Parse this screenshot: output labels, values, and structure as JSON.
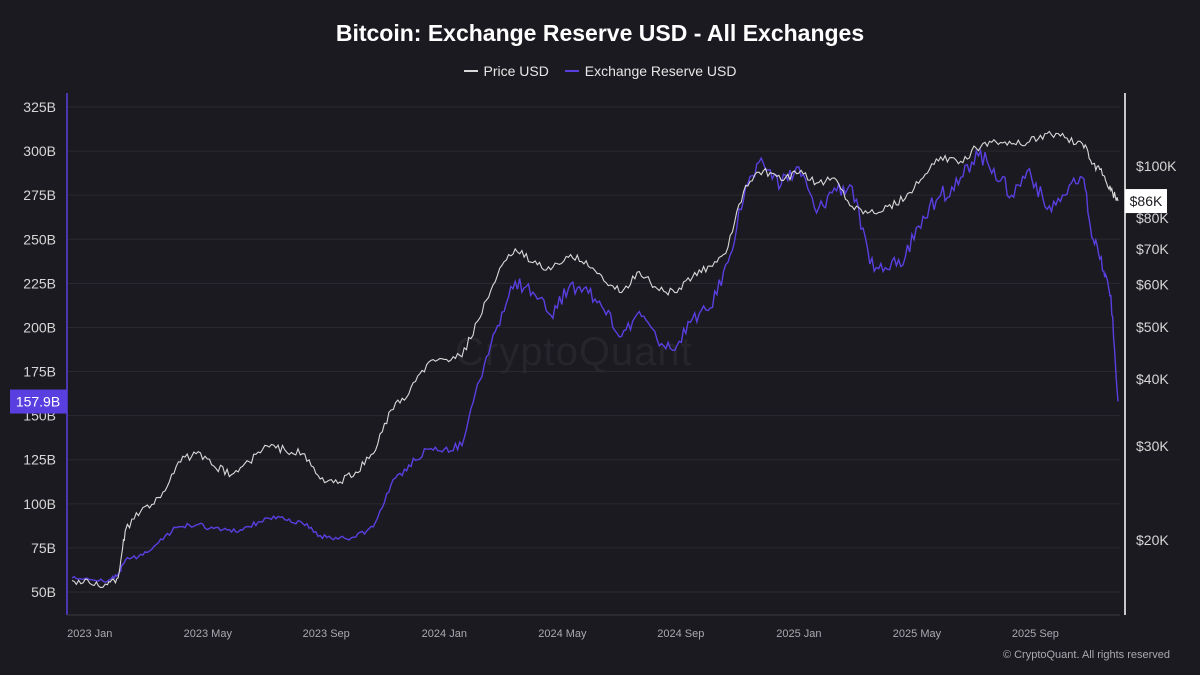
{
  "title": "Bitcoin: Exchange Reserve USD - All Exchanges",
  "copyright": "© CryptoQuant. All rights reserved",
  "watermark": "CryptoQuant",
  "legend": [
    {
      "label": "Price USD",
      "color": "#d9d9d9"
    },
    {
      "label": "Exchange Reserve USD",
      "color": "#5a3fe0"
    }
  ],
  "chart_data": {
    "type": "line",
    "title": "Bitcoin: Exchange Reserve USD - All Exchanges",
    "x_ticks": [
      "2023 Jan",
      "2023 May",
      "2023 Sep",
      "2024 Jan",
      "2024 May",
      "2024 Sep",
      "2025 Jan",
      "2025 May",
      "2025 Sep"
    ],
    "x_range": [
      "2022-12",
      "2025-11"
    ],
    "y_left": {
      "label": "Exchange Reserve USD",
      "ticks": [
        "50B",
        "75B",
        "100B",
        "125B",
        "150B",
        "175B",
        "200B",
        "225B",
        "250B",
        "275B",
        "300B",
        "325B"
      ],
      "range": [
        50,
        325
      ],
      "unit": "B"
    },
    "y_right": {
      "label": "Price USD",
      "scale": "log",
      "ticks": [
        "$20K",
        "$30K",
        "$40K",
        "$50K",
        "$60K",
        "$70K",
        "$80K",
        "$100K"
      ],
      "tick_values": [
        20000,
        30000,
        40000,
        50000,
        60000,
        70000,
        80000,
        100000
      ]
    },
    "last_value_labels": {
      "reserve": "157.9B",
      "price": "$86K"
    },
    "series": [
      {
        "name": "Exchange Reserve USD",
        "axis": "left",
        "color": "#5a3fe0",
        "x": [
          2022.95,
          2023.0,
          2023.05,
          2023.08,
          2023.1,
          2023.15,
          2023.2,
          2023.25,
          2023.3,
          2023.35,
          2023.4,
          2023.45,
          2023.5,
          2023.55,
          2023.6,
          2023.65,
          2023.7,
          2023.75,
          2023.8,
          2023.85,
          2023.9,
          2023.95,
          2024.0,
          2024.05,
          2024.1,
          2024.15,
          2024.2,
          2024.25,
          2024.3,
          2024.35,
          2024.4,
          2024.45,
          2024.5,
          2024.55,
          2024.6,
          2024.65,
          2024.7,
          2024.75,
          2024.8,
          2024.85,
          2024.9,
          2024.95,
          2025.0,
          2025.05,
          2025.1,
          2025.15,
          2025.2,
          2025.25,
          2025.3,
          2025.35,
          2025.4,
          2025.45,
          2025.5,
          2025.55,
          2025.6,
          2025.65,
          2025.7,
          2025.75,
          2025.8,
          2025.83,
          2025.86,
          2025.88,
          2025.9
        ],
        "values": [
          58,
          57,
          56,
          60,
          68,
          71,
          80,
          87,
          88,
          86,
          84,
          87,
          92,
          91,
          89,
          82,
          80,
          81,
          87,
          111,
          122,
          131,
          131,
          133,
          170,
          201,
          226,
          220,
          207,
          222,
          223,
          210,
          195,
          209,
          193,
          187,
          205,
          211,
          237,
          280,
          293,
          281,
          291,
          265,
          279,
          280,
          236,
          233,
          240,
          263,
          275,
          281,
          300,
          290,
          275,
          290,
          267,
          275,
          285,
          250,
          232,
          218,
          158
        ],
        "last_label": "157.9B"
      },
      {
        "name": "Price USD",
        "axis": "right",
        "color": "#d9d9d9",
        "x": [
          2022.95,
          2023.0,
          2023.05,
          2023.08,
          2023.1,
          2023.15,
          2023.2,
          2023.25,
          2023.3,
          2023.35,
          2023.4,
          2023.45,
          2023.5,
          2023.55,
          2023.6,
          2023.65,
          2023.7,
          2023.75,
          2023.8,
          2023.85,
          2023.9,
          2023.95,
          2024.0,
          2024.05,
          2024.1,
          2024.15,
          2024.2,
          2024.25,
          2024.3,
          2024.35,
          2024.4,
          2024.45,
          2024.5,
          2024.55,
          2024.6,
          2024.65,
          2024.7,
          2024.75,
          2024.8,
          2024.85,
          2024.9,
          2024.95,
          2025.0,
          2025.05,
          2025.1,
          2025.15,
          2025.2,
          2025.25,
          2025.3,
          2025.35,
          2025.4,
          2025.45,
          2025.5,
          2025.55,
          2025.6,
          2025.65,
          2025.7,
          2025.75,
          2025.8,
          2025.83,
          2025.86,
          2025.88,
          2025.9
        ],
        "values": [
          16800,
          16600,
          16500,
          17000,
          20800,
          23000,
          24000,
          28000,
          29000,
          27500,
          26500,
          28000,
          30000,
          29500,
          29000,
          26000,
          25500,
          26800,
          29000,
          35000,
          37500,
          42500,
          43500,
          44000,
          52000,
          62500,
          70000,
          66000,
          64000,
          67500,
          66500,
          61000,
          58000,
          63500,
          59000,
          58000,
          62000,
          65000,
          70500,
          92000,
          98000,
          94000,
          97000,
          93000,
          95000,
          84000,
          82000,
          84000,
          87000,
          95000,
          104000,
          101000,
          108000,
          112000,
          110000,
          111000,
          115000,
          113000,
          110000,
          101000,
          96000,
          90000,
          86000
        ],
        "last_label": "$86K"
      }
    ]
  }
}
